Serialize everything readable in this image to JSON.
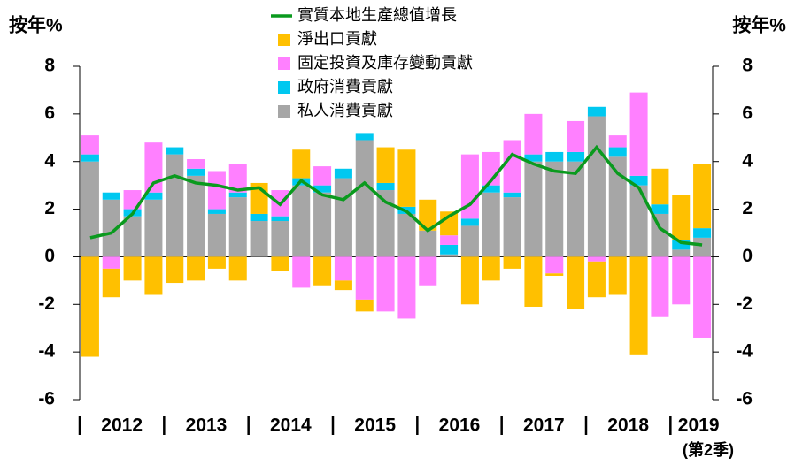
{
  "chart_data": {
    "type": "stacked_bar_line",
    "y_label": "按年%",
    "y2_label": "按年%",
    "year_labels": [
      "2012",
      "2013",
      "2014",
      "2015",
      "2016",
      "2017",
      "2018",
      "2019"
    ],
    "annotation": "(第2季)",
    "ylim": [
      -6,
      8
    ],
    "yticks": [
      -6,
      -4,
      -2,
      0,
      2,
      4,
      6,
      8
    ],
    "y2lim": [
      -6,
      8
    ],
    "y2ticks": [
      -6,
      -4,
      -2,
      0,
      2,
      4,
      6,
      8
    ],
    "series": [
      {
        "name": "實質本地生產總值增長",
        "kind": "line",
        "color": "#0a9a1e",
        "values": [
          0.8,
          1.0,
          1.8,
          3.1,
          3.4,
          3.1,
          3.0,
          2.8,
          2.9,
          2.2,
          3.2,
          2.6,
          2.4,
          3.1,
          2.3,
          1.9,
          1.1,
          1.7,
          2.2,
          3.2,
          4.3,
          3.9,
          3.6,
          3.5,
          4.6,
          3.5,
          2.9,
          1.2,
          0.6,
          0.5
        ]
      },
      {
        "name": "淨出口貢獻",
        "kind": "bar",
        "color": "#ffc000",
        "values": [
          -4.2,
          -1.2,
          -1.0,
          -1.6,
          -1.1,
          -1.0,
          -0.5,
          -1.0,
          1.3,
          -0.6,
          1.2,
          -1.2,
          -0.4,
          -0.5,
          1.5,
          2.4,
          1.3,
          1.0,
          -2.0,
          -1.0,
          -0.5,
          -2.1,
          -0.1,
          -2.2,
          -1.5,
          -1.6,
          -4.1,
          1.5,
          1.9,
          2.7
        ]
      },
      {
        "name": "固定投資及庫存變動貢獻",
        "kind": "bar",
        "color": "#ff80ff",
        "values": [
          0.8,
          -0.5,
          0.8,
          2.1,
          0,
          0.4,
          1.6,
          1.2,
          0,
          1.1,
          -1.3,
          0.8,
          -1.0,
          -1.8,
          -2.3,
          -2.6,
          -1.2,
          0.4,
          2.7,
          1.4,
          2.2,
          1.7,
          -0.7,
          1.3,
          -0.2,
          0.5,
          3.5,
          -2.5,
          -2.0,
          -3.4
        ]
      },
      {
        "name": "政府消費貢獻",
        "kind": "bar",
        "color": "#00c8f0",
        "values": [
          0.3,
          0.3,
          0.3,
          0.3,
          0.3,
          0.3,
          0.2,
          0.2,
          0.3,
          0.2,
          0.3,
          0.3,
          0.4,
          0.3,
          0.3,
          0.3,
          0,
          0.4,
          0.3,
          0.3,
          0.2,
          0.3,
          0.4,
          0.4,
          0.4,
          0.4,
          0.4,
          0.4,
          0.4,
          0.4
        ]
      },
      {
        "name": "私人消費貢獻",
        "kind": "bar",
        "color": "#a6a6a6",
        "values": [
          4.0,
          2.4,
          1.7,
          2.4,
          4.3,
          3.4,
          1.8,
          2.5,
          1.5,
          1.5,
          3.0,
          2.7,
          3.3,
          4.9,
          2.8,
          1.8,
          1.1,
          0.1,
          1.3,
          2.7,
          2.5,
          4.0,
          4.0,
          4.0,
          5.9,
          4.2,
          3.0,
          1.8,
          0.3,
          0.8
        ]
      }
    ]
  }
}
